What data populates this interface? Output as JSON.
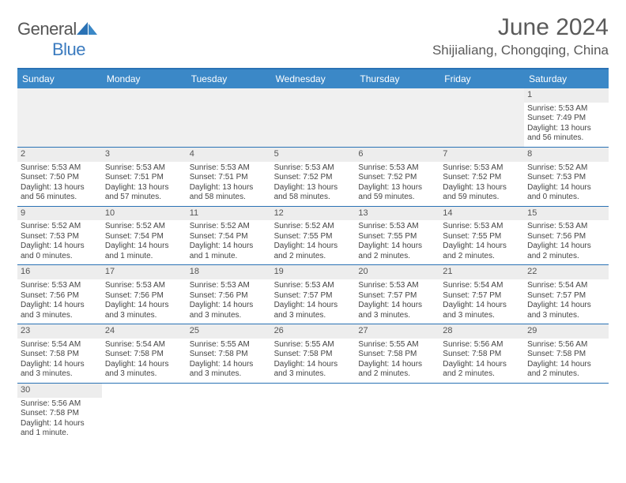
{
  "brand": {
    "name_a": "General",
    "name_b": "Blue"
  },
  "title": "June 2024",
  "location": "Shijialiang, Chongqing, China",
  "colors": {
    "header_bar": "#3b88c7",
    "border": "#2a72b5",
    "daynum_bg": "#ededed",
    "text": "#444444",
    "title_text": "#5a5a5a"
  },
  "day_names": [
    "Sunday",
    "Monday",
    "Tuesday",
    "Wednesday",
    "Thursday",
    "Friday",
    "Saturday"
  ],
  "weeks": [
    [
      null,
      null,
      null,
      null,
      null,
      null,
      {
        "n": "1",
        "sr": "Sunrise: 5:53 AM",
        "ss": "Sunset: 7:49 PM",
        "dl": "Daylight: 13 hours and 56 minutes."
      }
    ],
    [
      {
        "n": "2",
        "sr": "Sunrise: 5:53 AM",
        "ss": "Sunset: 7:50 PM",
        "dl": "Daylight: 13 hours and 56 minutes."
      },
      {
        "n": "3",
        "sr": "Sunrise: 5:53 AM",
        "ss": "Sunset: 7:51 PM",
        "dl": "Daylight: 13 hours and 57 minutes."
      },
      {
        "n": "4",
        "sr": "Sunrise: 5:53 AM",
        "ss": "Sunset: 7:51 PM",
        "dl": "Daylight: 13 hours and 58 minutes."
      },
      {
        "n": "5",
        "sr": "Sunrise: 5:53 AM",
        "ss": "Sunset: 7:52 PM",
        "dl": "Daylight: 13 hours and 58 minutes."
      },
      {
        "n": "6",
        "sr": "Sunrise: 5:53 AM",
        "ss": "Sunset: 7:52 PM",
        "dl": "Daylight: 13 hours and 59 minutes."
      },
      {
        "n": "7",
        "sr": "Sunrise: 5:53 AM",
        "ss": "Sunset: 7:52 PM",
        "dl": "Daylight: 13 hours and 59 minutes."
      },
      {
        "n": "8",
        "sr": "Sunrise: 5:52 AM",
        "ss": "Sunset: 7:53 PM",
        "dl": "Daylight: 14 hours and 0 minutes."
      }
    ],
    [
      {
        "n": "9",
        "sr": "Sunrise: 5:52 AM",
        "ss": "Sunset: 7:53 PM",
        "dl": "Daylight: 14 hours and 0 minutes."
      },
      {
        "n": "10",
        "sr": "Sunrise: 5:52 AM",
        "ss": "Sunset: 7:54 PM",
        "dl": "Daylight: 14 hours and 1 minute."
      },
      {
        "n": "11",
        "sr": "Sunrise: 5:52 AM",
        "ss": "Sunset: 7:54 PM",
        "dl": "Daylight: 14 hours and 1 minute."
      },
      {
        "n": "12",
        "sr": "Sunrise: 5:52 AM",
        "ss": "Sunset: 7:55 PM",
        "dl": "Daylight: 14 hours and 2 minutes."
      },
      {
        "n": "13",
        "sr": "Sunrise: 5:53 AM",
        "ss": "Sunset: 7:55 PM",
        "dl": "Daylight: 14 hours and 2 minutes."
      },
      {
        "n": "14",
        "sr": "Sunrise: 5:53 AM",
        "ss": "Sunset: 7:55 PM",
        "dl": "Daylight: 14 hours and 2 minutes."
      },
      {
        "n": "15",
        "sr": "Sunrise: 5:53 AM",
        "ss": "Sunset: 7:56 PM",
        "dl": "Daylight: 14 hours and 2 minutes."
      }
    ],
    [
      {
        "n": "16",
        "sr": "Sunrise: 5:53 AM",
        "ss": "Sunset: 7:56 PM",
        "dl": "Daylight: 14 hours and 3 minutes."
      },
      {
        "n": "17",
        "sr": "Sunrise: 5:53 AM",
        "ss": "Sunset: 7:56 PM",
        "dl": "Daylight: 14 hours and 3 minutes."
      },
      {
        "n": "18",
        "sr": "Sunrise: 5:53 AM",
        "ss": "Sunset: 7:56 PM",
        "dl": "Daylight: 14 hours and 3 minutes."
      },
      {
        "n": "19",
        "sr": "Sunrise: 5:53 AM",
        "ss": "Sunset: 7:57 PM",
        "dl": "Daylight: 14 hours and 3 minutes."
      },
      {
        "n": "20",
        "sr": "Sunrise: 5:53 AM",
        "ss": "Sunset: 7:57 PM",
        "dl": "Daylight: 14 hours and 3 minutes."
      },
      {
        "n": "21",
        "sr": "Sunrise: 5:54 AM",
        "ss": "Sunset: 7:57 PM",
        "dl": "Daylight: 14 hours and 3 minutes."
      },
      {
        "n": "22",
        "sr": "Sunrise: 5:54 AM",
        "ss": "Sunset: 7:57 PM",
        "dl": "Daylight: 14 hours and 3 minutes."
      }
    ],
    [
      {
        "n": "23",
        "sr": "Sunrise: 5:54 AM",
        "ss": "Sunset: 7:58 PM",
        "dl": "Daylight: 14 hours and 3 minutes."
      },
      {
        "n": "24",
        "sr": "Sunrise: 5:54 AM",
        "ss": "Sunset: 7:58 PM",
        "dl": "Daylight: 14 hours and 3 minutes."
      },
      {
        "n": "25",
        "sr": "Sunrise: 5:55 AM",
        "ss": "Sunset: 7:58 PM",
        "dl": "Daylight: 14 hours and 3 minutes."
      },
      {
        "n": "26",
        "sr": "Sunrise: 5:55 AM",
        "ss": "Sunset: 7:58 PM",
        "dl": "Daylight: 14 hours and 3 minutes."
      },
      {
        "n": "27",
        "sr": "Sunrise: 5:55 AM",
        "ss": "Sunset: 7:58 PM",
        "dl": "Daylight: 14 hours and 2 minutes."
      },
      {
        "n": "28",
        "sr": "Sunrise: 5:56 AM",
        "ss": "Sunset: 7:58 PM",
        "dl": "Daylight: 14 hours and 2 minutes."
      },
      {
        "n": "29",
        "sr": "Sunrise: 5:56 AM",
        "ss": "Sunset: 7:58 PM",
        "dl": "Daylight: 14 hours and 2 minutes."
      }
    ],
    [
      {
        "n": "30",
        "sr": "Sunrise: 5:56 AM",
        "ss": "Sunset: 7:58 PM",
        "dl": "Daylight: 14 hours and 1 minute."
      },
      null,
      null,
      null,
      null,
      null,
      null
    ]
  ]
}
